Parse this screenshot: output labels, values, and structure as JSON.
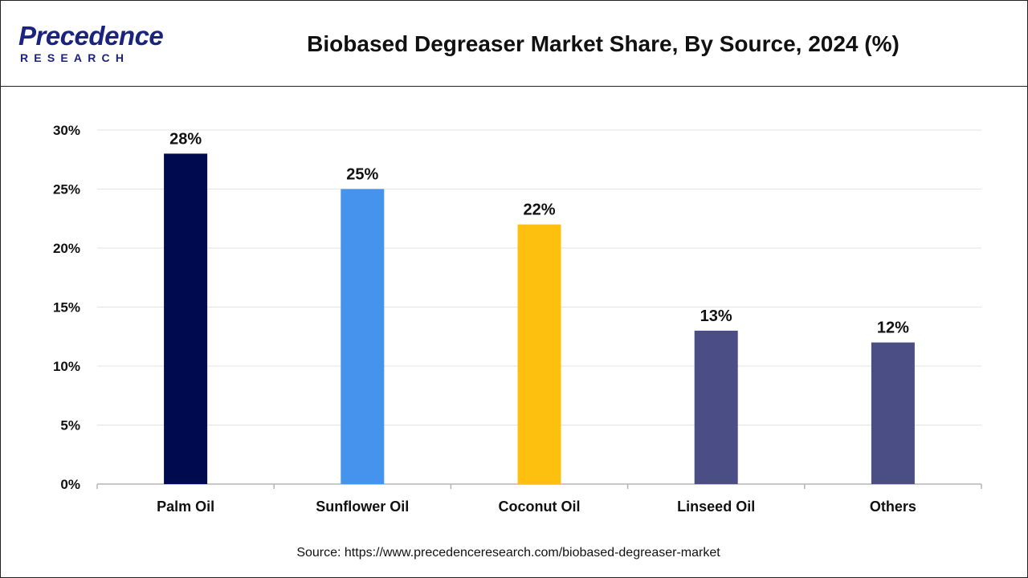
{
  "header": {
    "logo_main": "Precedence",
    "logo_sub": "RESEARCH",
    "title": "Biobased Degreaser Market Share, By Source, 2024 (%)"
  },
  "chart_data": {
    "type": "bar",
    "categories": [
      "Palm Oil",
      "Sunflower Oil",
      "Coconut Oil",
      "Linseed Oil",
      "Others"
    ],
    "values": [
      28,
      25,
      22,
      13,
      12
    ],
    "data_labels": [
      "28%",
      "25%",
      "22%",
      "13%",
      "12%"
    ],
    "bar_colors": [
      "#000a4f",
      "#4693ee",
      "#fec00e",
      "#4b4e85",
      "#4b4e85"
    ],
    "ylim": [
      0,
      30
    ],
    "y_ticks": [
      0,
      5,
      10,
      15,
      20,
      25,
      30
    ],
    "y_tick_labels": [
      "0%",
      "5%",
      "10%",
      "15%",
      "20%",
      "25%",
      "30%"
    ],
    "grid": true,
    "legend": "none"
  },
  "footer": {
    "source": "Source: https://www.precedenceresearch.com/biobased-degreaser-market"
  }
}
